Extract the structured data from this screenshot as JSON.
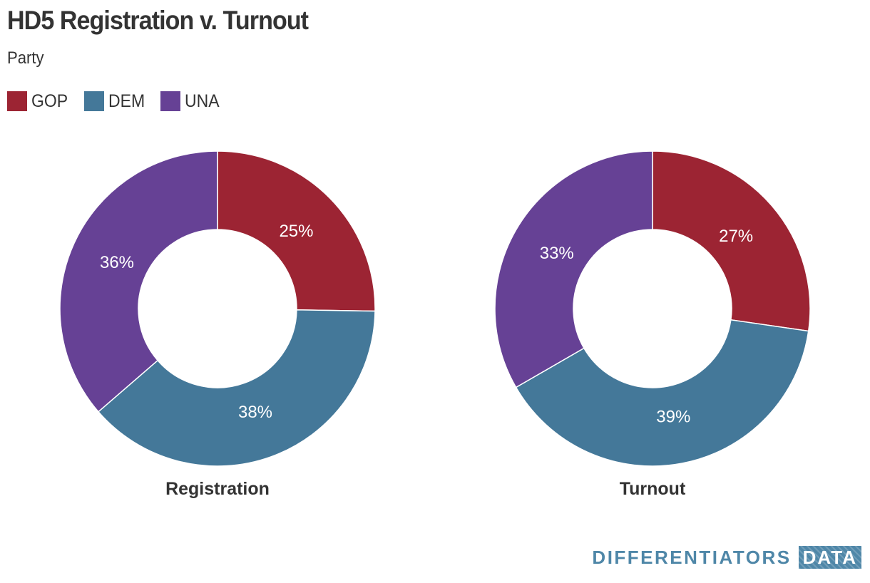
{
  "title": "HD5 Registration v. Turnout",
  "subtitle": "Party",
  "legend": [
    {
      "label": "GOP",
      "color": "#9c2433"
    },
    {
      "label": "DEM",
      "color": "#447899"
    },
    {
      "label": "UNA",
      "color": "#664195"
    }
  ],
  "chart_data": [
    {
      "type": "pie",
      "donut": true,
      "title": "Registration",
      "categories": [
        "GOP",
        "DEM",
        "UNA"
      ],
      "values": [
        25,
        38,
        36
      ],
      "labels": [
        "25%",
        "38%",
        "36%"
      ],
      "colors": [
        "#9c2433",
        "#447899",
        "#664195"
      ]
    },
    {
      "type": "pie",
      "donut": true,
      "title": "Turnout",
      "categories": [
        "GOP",
        "DEM",
        "UNA"
      ],
      "values": [
        27,
        39,
        33
      ],
      "labels": [
        "27%",
        "39%",
        "33%"
      ],
      "colors": [
        "#9c2433",
        "#447899",
        "#664195"
      ]
    }
  ],
  "branding": {
    "text": "DIFFERENTIATORS",
    "box": "DATA",
    "color": "#4f87a8"
  }
}
